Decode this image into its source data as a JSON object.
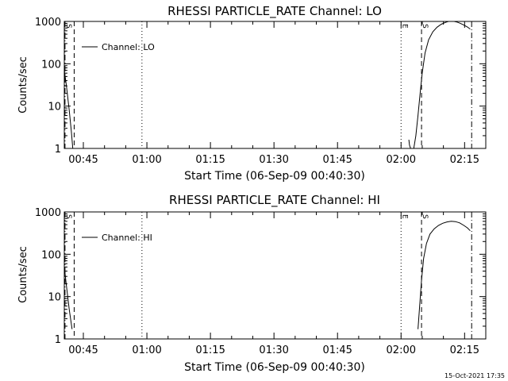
{
  "footer_timestamp": "15-Oct-2021 17:35",
  "chart_data": [
    {
      "type": "line",
      "title": "RHESSI PARTICLE_RATE Channel: LO",
      "xlabel": "Start Time (06-Sep-09 00:40:30)",
      "ylabel": "Counts/sec",
      "yscale": "log",
      "xlim": [
        "00:40:30",
        "02:20:00"
      ],
      "ylim": [
        1,
        1000
      ],
      "xticks": [
        "00:45",
        "01:00",
        "01:15",
        "01:30",
        "01:45",
        "02:00",
        "02:15"
      ],
      "yticks": [
        "1",
        "10",
        "100",
        "1000"
      ],
      "legend": {
        "label": "Channel: LO",
        "placement": "top-left"
      },
      "markers": [
        {
          "time": "00:40:40",
          "style": "dash-dot",
          "label": "S"
        },
        {
          "time": "00:42:50",
          "style": "dashed",
          "label": ""
        },
        {
          "time": "00:58:50",
          "style": "dotted",
          "label": ""
        },
        {
          "time": "02:00:00",
          "style": "dotted",
          "label": "E"
        },
        {
          "time": "02:04:50",
          "style": "dashed",
          "label": "S"
        },
        {
          "time": "02:16:40",
          "style": "dash-dot",
          "label": ""
        }
      ],
      "series": [
        {
          "name": "Channel: LO",
          "segments": [
            {
              "x": [
                "00:40:30",
                "00:41:00",
                "00:41:40",
                "00:42:10",
                "00:42:30"
              ],
              "y": [
                70,
                30,
                8,
                2.5,
                1
              ]
            },
            {
              "x": [
                "02:01:50",
                "02:02:00",
                "02:02:15"
              ],
              "y": [
                1.6,
                1.2,
                1
              ]
            },
            {
              "x": [
                "02:03:00",
                "02:03:30",
                "02:04:00",
                "02:04:30",
                "02:05:00",
                "02:05:40",
                "02:06:30",
                "02:07:30",
                "02:08:30",
                "02:09:30",
                "02:10:30",
                "02:11:30",
                "02:12:20",
                "02:13:10",
                "02:14:00",
                "02:14:50",
                "02:15:40",
                "02:16:20"
              ],
              "y": [
                1,
                2,
                6,
                20,
                60,
                180,
                370,
                570,
                730,
                860,
                950,
                1020,
                1010,
                970,
                900,
                820,
                740,
                660
              ]
            }
          ]
        }
      ]
    },
    {
      "type": "line",
      "title": "RHESSI PARTICLE_RATE Channel: HI",
      "xlabel": "Start Time (06-Sep-09 00:40:30)",
      "ylabel": "Counts/sec",
      "yscale": "log",
      "xlim": [
        "00:40:30",
        "02:20:00"
      ],
      "ylim": [
        1,
        1000
      ],
      "xticks": [
        "00:45",
        "01:00",
        "01:15",
        "01:30",
        "01:45",
        "02:00",
        "02:15"
      ],
      "yticks": [
        "1",
        "10",
        "100",
        "1000"
      ],
      "legend": {
        "label": "Channel: HI",
        "placement": "top-left"
      },
      "markers": [
        {
          "time": "00:40:40",
          "style": "dash-dot",
          "label": "S"
        },
        {
          "time": "00:42:50",
          "style": "dashed",
          "label": ""
        },
        {
          "time": "00:58:50",
          "style": "dotted",
          "label": ""
        },
        {
          "time": "02:00:00",
          "style": "dotted",
          "label": "E"
        },
        {
          "time": "02:04:50",
          "style": "dashed",
          "label": "S"
        },
        {
          "time": "02:16:40",
          "style": "dash-dot",
          "label": ""
        }
      ],
      "series": [
        {
          "name": "Channel: HI",
          "segments": [
            {
              "x": [
                "00:40:30",
                "00:41:00",
                "00:41:40",
                "00:42:20"
              ],
              "y": [
                50,
                18,
                5,
                1.7
              ]
            },
            {
              "x": [
                "02:04:00",
                "02:04:20",
                "02:04:50",
                "02:05:20",
                "02:06:00",
                "02:06:50",
                "02:07:50",
                "02:08:50",
                "02:09:50",
                "02:10:50",
                "02:11:50",
                "02:12:50",
                "02:13:50",
                "02:14:50",
                "02:15:40",
                "02:16:20"
              ],
              "y": [
                1.7,
                5,
                25,
                80,
                180,
                300,
                400,
                480,
                540,
                580,
                600,
                590,
                550,
                480,
                420,
                360
              ]
            }
          ]
        }
      ]
    }
  ]
}
